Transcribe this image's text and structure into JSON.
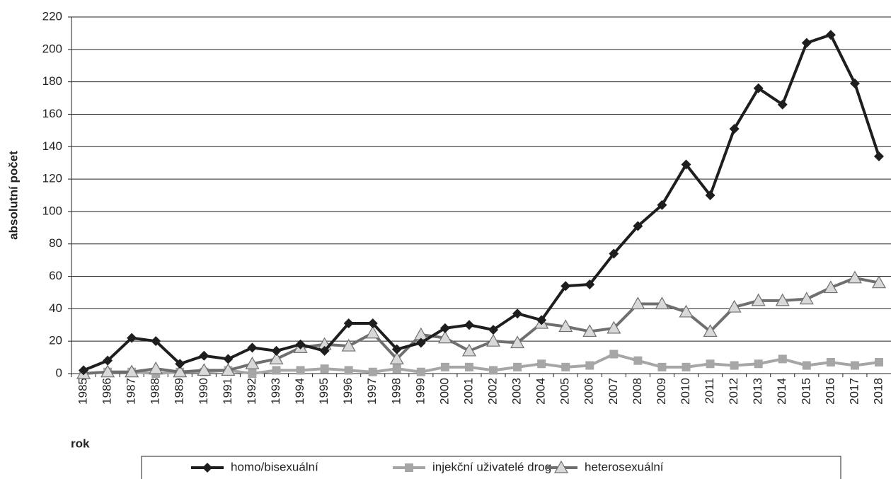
{
  "chart_data": {
    "type": "line",
    "x_label": "rok",
    "y_label": "absolutní počet",
    "categories": [
      "1985",
      "1986",
      "1987",
      "1988",
      "1989",
      "1990",
      "1991",
      "1992",
      "1993",
      "1994",
      "1995",
      "1996",
      "1997",
      "1998",
      "1999",
      "2000",
      "2001",
      "2002",
      "2003",
      "2004",
      "2005",
      "2006",
      "2007",
      "2008",
      "2009",
      "2010",
      "2011",
      "2012",
      "2013",
      "2014",
      "2015",
      "2016",
      "2017",
      "2018"
    ],
    "series": [
      {
        "name": "homo/bisexuální",
        "color": "#1e1e1e",
        "marker": "diamond",
        "values": [
          2,
          8,
          22,
          20,
          6,
          11,
          9,
          16,
          14,
          18,
          14,
          31,
          31,
          15,
          19,
          28,
          30,
          27,
          37,
          33,
          54,
          55,
          74,
          91,
          104,
          129,
          110,
          151,
          176,
          166,
          204,
          209,
          179,
          134
        ]
      },
      {
        "name": "injekční uživatelé drog",
        "color": "#a6a6a6",
        "marker": "square",
        "values": [
          0,
          1,
          1,
          0,
          1,
          1,
          2,
          0,
          2,
          2,
          3,
          2,
          1,
          3,
          1,
          4,
          4,
          2,
          4,
          6,
          4,
          5,
          12,
          8,
          4,
          4,
          6,
          5,
          6,
          9,
          5,
          7,
          5,
          7
        ]
      },
      {
        "name": "heterosexuální",
        "color": "#6f6f6f",
        "marker": "triangle",
        "values": [
          0,
          1,
          1,
          3,
          1,
          2,
          2,
          6,
          9,
          16,
          18,
          17,
          25,
          9,
          24,
          22,
          14,
          20,
          19,
          31,
          29,
          26,
          28,
          43,
          43,
          38,
          26,
          41,
          45,
          45,
          46,
          53,
          59,
          56
        ]
      }
    ],
    "ylim": [
      0,
      220
    ],
    "yticks": [
      0,
      20,
      40,
      60,
      80,
      100,
      120,
      140,
      160,
      180,
      200,
      220
    ],
    "grid": true,
    "legend": "bottom"
  }
}
